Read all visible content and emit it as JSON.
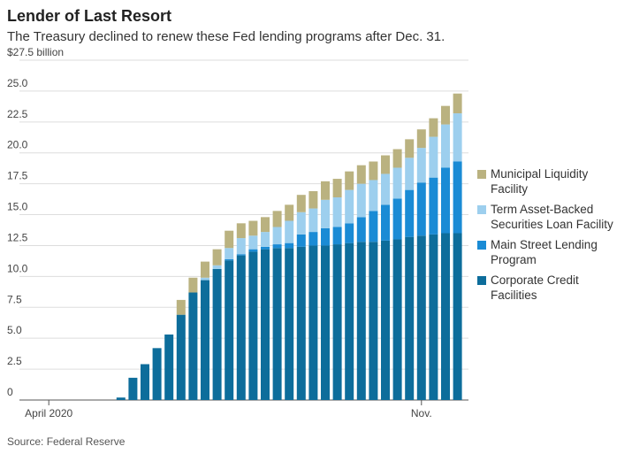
{
  "chart_data": {
    "type": "stacked_bar",
    "title": "Lender of Last Resort",
    "subtitle": "The Treasury declined to renew these Fed lending programs after Dec. 31.",
    "source": "Source: Federal Reserve",
    "categories": [
      null,
      null,
      "April 2020",
      null,
      null,
      null,
      null,
      null,
      null,
      null,
      null,
      null,
      null,
      null,
      null,
      null,
      null,
      null,
      null,
      null,
      null,
      null,
      null,
      null,
      null,
      null,
      null,
      null,
      null,
      null,
      null,
      null,
      null,
      "Nov.",
      null,
      null,
      null
    ],
    "series": [
      {
        "name": "Corporate Credit Facilities",
        "color": "#0d6d9b",
        "values": [
          0,
          0,
          0,
          0,
          0,
          0,
          0,
          0,
          0.2,
          1.8,
          2.9,
          4.2,
          5.3,
          6.9,
          8.7,
          9.7,
          10.6,
          11.3,
          11.7,
          12.0,
          12.2,
          12.3,
          12.3,
          12.4,
          12.5,
          12.5,
          12.6,
          12.7,
          12.8,
          12.8,
          12.9,
          13.0,
          13.2,
          13.3,
          13.4,
          13.5,
          13.5
        ]
      },
      {
        "name": "Main Street Lending Program",
        "color": "#1a8bd5",
        "values": [
          0,
          0,
          0,
          0,
          0,
          0,
          0,
          0,
          0,
          0,
          0,
          0,
          0,
          0,
          0,
          0,
          0,
          0.1,
          0.1,
          0.2,
          0.2,
          0.3,
          0.4,
          1.0,
          1.1,
          1.4,
          1.4,
          1.6,
          2.0,
          2.5,
          2.9,
          3.3,
          3.8,
          4.3,
          4.6,
          5.3,
          5.8
        ]
      },
      {
        "name": "Term Asset-Backed Securities Loan Facility",
        "color": "#9dcfee",
        "values": [
          0,
          0,
          0,
          0,
          0,
          0,
          0,
          0,
          0,
          0,
          0,
          0,
          0,
          0,
          0,
          0.2,
          0.3,
          0.9,
          1.3,
          1.1,
          1.2,
          1.4,
          1.8,
          1.8,
          1.9,
          2.3,
          2.4,
          2.7,
          2.7,
          2.5,
          2.5,
          2.5,
          2.6,
          2.8,
          3.3,
          3.5,
          3.9
        ]
      },
      {
        "name": "Municipal Liquidity Facility",
        "color": "#bab280",
        "values": [
          0,
          0,
          0,
          0,
          0,
          0,
          0,
          0,
          0,
          0,
          0,
          0,
          0,
          1.2,
          1.2,
          1.3,
          1.3,
          1.4,
          1.2,
          1.2,
          1.2,
          1.3,
          1.3,
          1.4,
          1.4,
          1.5,
          1.5,
          1.5,
          1.5,
          1.5,
          1.5,
          1.5,
          1.5,
          1.5,
          1.5,
          1.5,
          1.6
        ]
      }
    ],
    "ylim": [
      0,
      27.5
    ],
    "yticks": [
      0,
      2.5,
      {
        "value": 5,
        "label": "5.0"
      },
      7.5,
      {
        "value": 10,
        "label": "10.0"
      },
      12.5,
      {
        "value": 15,
        "label": "15.0"
      },
      17.5,
      {
        "value": 20,
        "label": "20.0"
      },
      22.5,
      {
        "value": 25,
        "label": "25.0"
      },
      {
        "value": 27.5,
        "label": "$27.5 billion"
      }
    ],
    "grid": true
  }
}
